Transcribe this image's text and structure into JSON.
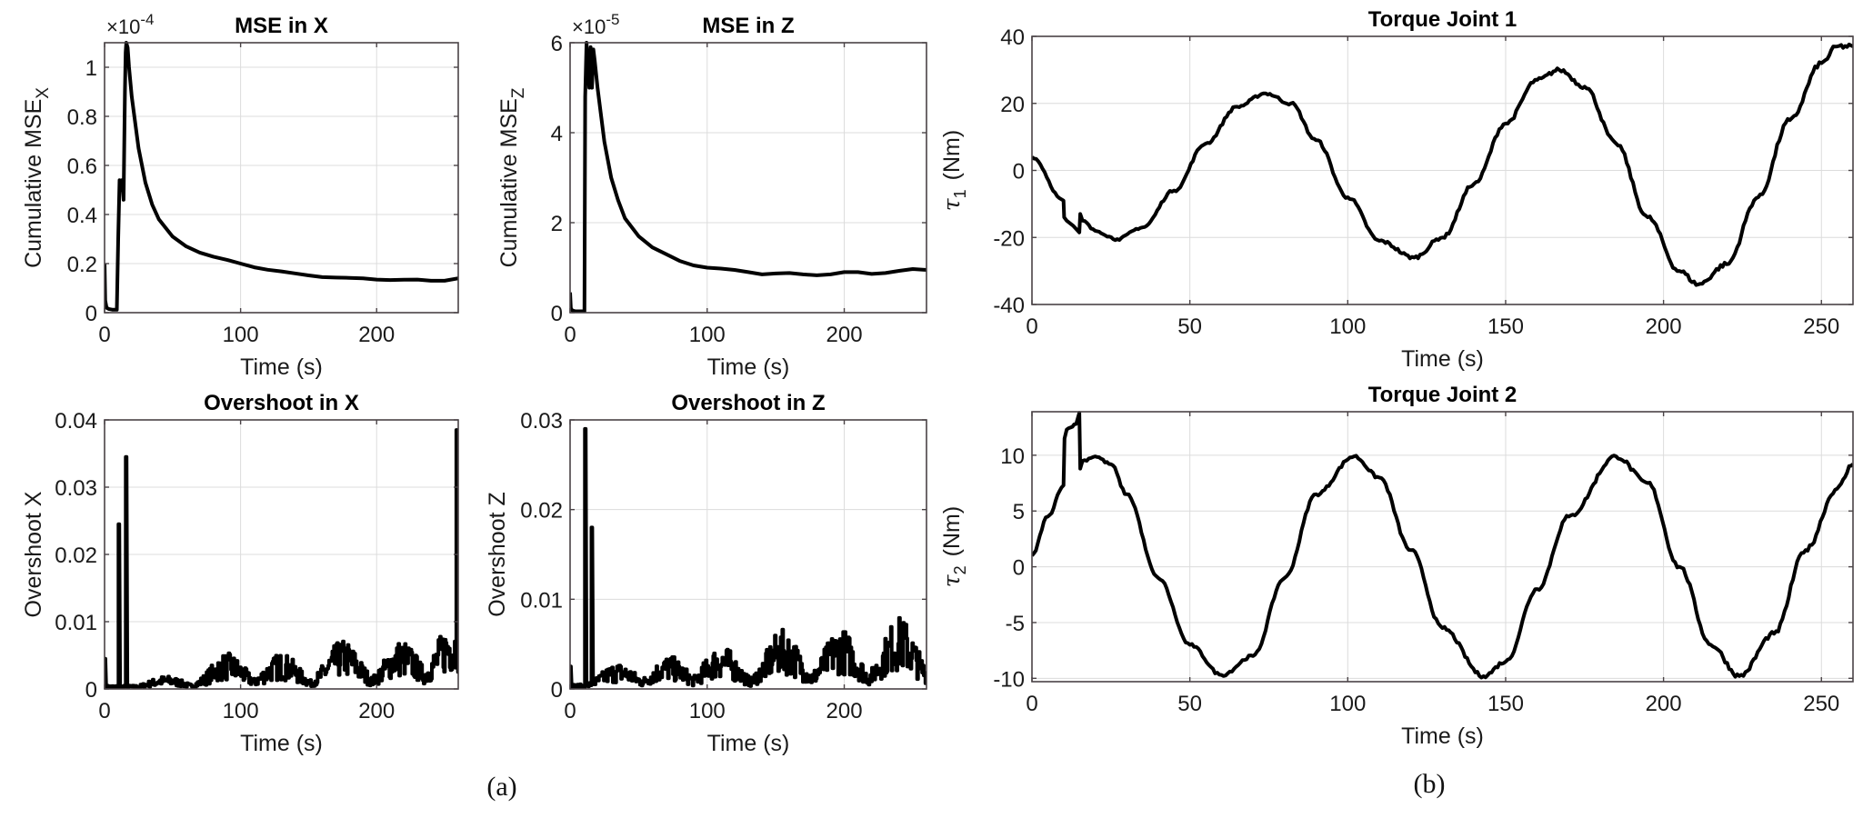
{
  "figure": {
    "captions": {
      "a": "(a)",
      "b": "(b)"
    }
  },
  "chart_data": [
    {
      "id": "mse_x",
      "type": "line",
      "title": "MSE in X",
      "xlabel": "Time (s)",
      "ylabel": "Cumulative MSE",
      "ylabel_subscript": "X",
      "y_exponent_label": "×10",
      "y_exponent": "-4",
      "xlim": [
        0,
        260
      ],
      "ylim": [
        0,
        1.1
      ],
      "xticks": [
        0,
        100,
        200
      ],
      "yticks": [
        0,
        0.2,
        0.4,
        0.6,
        0.8,
        1
      ],
      "ytick_labels": [
        "0",
        "0.2",
        "0.4",
        "0.6",
        "0.8",
        "1"
      ],
      "grid": true,
      "series": [
        {
          "name": "Cumulative MSE X",
          "x": [
            0,
            0.5,
            1.5,
            3,
            6,
            9,
            10,
            11,
            12,
            13,
            14,
            15,
            15.5,
            16,
            17,
            18,
            20,
            25,
            30,
            35,
            40,
            50,
            60,
            70,
            80,
            90,
            100,
            110,
            120,
            130,
            140,
            150,
            160,
            170,
            180,
            190,
            200,
            210,
            220,
            230,
            240,
            250,
            260
          ],
          "y": [
            0.2,
            0.05,
            0.02,
            0.015,
            0.012,
            0.012,
            0.3,
            0.54,
            0.5,
            0.54,
            0.46,
            0.9,
            1.06,
            1.1,
            1.08,
            1.0,
            0.88,
            0.67,
            0.53,
            0.44,
            0.38,
            0.31,
            0.27,
            0.245,
            0.228,
            0.215,
            0.2,
            0.185,
            0.175,
            0.168,
            0.16,
            0.152,
            0.145,
            0.143,
            0.142,
            0.14,
            0.135,
            0.133,
            0.134,
            0.135,
            0.13,
            0.13,
            0.14
          ]
        }
      ]
    },
    {
      "id": "mse_z",
      "type": "line",
      "title": "MSE in Z",
      "xlabel": "Time (s)",
      "ylabel": "Cumulative MSE",
      "ylabel_subscript": "Z",
      "y_exponent_label": "×10",
      "y_exponent": "-5",
      "xlim": [
        0,
        260
      ],
      "ylim": [
        0,
        6
      ],
      "xticks": [
        0,
        100,
        200
      ],
      "yticks": [
        0,
        2,
        4,
        6
      ],
      "ytick_labels": [
        "0",
        "2",
        "4",
        "6"
      ],
      "grid": true,
      "series": [
        {
          "name": "Cumulative MSE Z",
          "x": [
            0,
            0.5,
            1.5,
            4,
            8,
            10.5,
            11,
            12,
            13,
            14,
            15,
            16,
            17,
            18,
            20,
            25,
            30,
            35,
            40,
            50,
            60,
            70,
            80,
            90,
            100,
            110,
            120,
            130,
            140,
            150,
            160,
            170,
            180,
            190,
            200,
            210,
            220,
            230,
            240,
            250,
            260
          ],
          "y": [
            0.45,
            0.1,
            0.05,
            0.03,
            0.03,
            0.03,
            4.8,
            6.0,
            5.5,
            5.0,
            5.9,
            5.0,
            5.85,
            5.6,
            5.0,
            3.8,
            3.0,
            2.5,
            2.1,
            1.7,
            1.45,
            1.3,
            1.15,
            1.05,
            1.0,
            0.98,
            0.95,
            0.9,
            0.85,
            0.87,
            0.88,
            0.85,
            0.83,
            0.85,
            0.9,
            0.9,
            0.86,
            0.88,
            0.93,
            0.97,
            0.95
          ]
        }
      ]
    },
    {
      "id": "overshoot_x",
      "type": "line",
      "title": "Overshoot in X",
      "xlabel": "Time (s)",
      "ylabel": "Overshoot X",
      "xlim": [
        0,
        260
      ],
      "ylim": [
        0,
        0.04
      ],
      "xticks": [
        0,
        100,
        200
      ],
      "yticks": [
        0,
        0.01,
        0.02,
        0.03,
        0.04
      ],
      "ytick_labels": [
        "0",
        "0.01",
        "0.02",
        "0.03",
        "0.04"
      ],
      "grid": true,
      "envelope": {
        "description": "noisy oscillating overshoot with early spikes",
        "spikes": [
          {
            "t": 0.5,
            "value": 0.0045
          },
          {
            "t": 10.5,
            "value": 0.0245
          },
          {
            "t": 16,
            "value": 0.0345
          },
          {
            "t": 259,
            "value": 0.0385
          }
        ],
        "bumps": [
          {
            "t": 45,
            "peak": 0.002
          },
          {
            "t": 90,
            "peak": 0.0055
          },
          {
            "t": 130,
            "peak": 0.0055
          },
          {
            "t": 175,
            "peak": 0.0075
          },
          {
            "t": 218,
            "peak": 0.0075
          },
          {
            "t": 255,
            "peak": 0.0102
          }
        ]
      }
    },
    {
      "id": "overshoot_z",
      "type": "line",
      "title": "Overshoot in Z",
      "xlabel": "Time (s)",
      "ylabel": "Overshoot Z",
      "xlim": [
        0,
        260
      ],
      "ylim": [
        0,
        0.03
      ],
      "xticks": [
        0,
        100,
        200
      ],
      "yticks": [
        0,
        0.01,
        0.02,
        0.03
      ],
      "ytick_labels": [
        "0",
        "0.01",
        "0.02",
        "0.03"
      ],
      "grid": true,
      "envelope": {
        "description": "noisy oscillating overshoot with early spikes",
        "spikes": [
          {
            "t": 0.5,
            "value": 0.0025
          },
          {
            "t": 11,
            "value": 0.029
          },
          {
            "t": 16,
            "value": 0.018
          }
        ],
        "bumps": [
          {
            "t": 35,
            "peak": 0.003
          },
          {
            "t": 72,
            "peak": 0.0038
          },
          {
            "t": 110,
            "peak": 0.005
          },
          {
            "t": 155,
            "peak": 0.0068
          },
          {
            "t": 197,
            "peak": 0.007
          },
          {
            "t": 240,
            "peak": 0.0083
          }
        ]
      }
    },
    {
      "id": "torque_1",
      "type": "line",
      "title": "Torque Joint 1",
      "xlabel": "Time (s)",
      "ylabel": "τ",
      "ylabel_subscript": "1",
      "ylabel_unit": "(Nm)",
      "xlim": [
        0,
        260
      ],
      "ylim": [
        -40,
        40
      ],
      "xticks": [
        0,
        50,
        100,
        150,
        200,
        250
      ],
      "yticks": [
        -40,
        -20,
        0,
        20,
        40
      ],
      "ytick_labels": [
        "-40",
        "-20",
        "0",
        "20",
        "40"
      ],
      "grid": true,
      "series": [
        {
          "name": "τ1",
          "x": [
            0,
            10,
            10.2,
            11,
            13,
            15,
            15.3,
            16,
            20,
            27,
            35,
            45,
            55,
            65,
            74,
            82,
            90,
            100,
            110,
            121,
            130,
            140,
            150,
            160,
            167,
            175,
            185,
            195,
            205,
            211,
            220,
            230,
            240,
            250,
            255,
            260
          ],
          "y": [
            4,
            -9,
            -14,
            -15,
            -16.5,
            -18.5,
            -13,
            -15,
            -18,
            -20.5,
            -17,
            -6,
            8,
            19,
            23,
            20,
            9,
            -8,
            -21,
            -26,
            -20,
            -4,
            14,
            27,
            30,
            25,
            8,
            -14,
            -30,
            -34,
            -28,
            -8,
            15,
            32,
            37,
            37
          ]
        }
      ]
    },
    {
      "id": "torque_2",
      "type": "line",
      "title": "Torque Joint 2",
      "xlabel": "Time (s)",
      "ylabel": "τ",
      "ylabel_subscript": "2",
      "ylabel_unit": "(Nm)",
      "xlim": [
        0,
        260
      ],
      "ylim": [
        -10.3,
        13.9
      ],
      "xticks": [
        0,
        50,
        100,
        150,
        200,
        250
      ],
      "yticks": [
        -10,
        -5,
        0,
        5,
        10
      ],
      "ytick_labels": [
        "-10",
        "-5",
        "0",
        "5",
        "10"
      ],
      "grid": true,
      "series": [
        {
          "name": "τ2",
          "x": [
            0,
            5,
            10,
            10.3,
            11,
            14,
            15,
            15.3,
            16,
            20,
            25,
            30,
            40,
            50,
            60,
            70,
            80,
            90,
            102,
            110,
            120,
            130,
            143,
            150,
            160,
            170,
            185,
            195,
            205,
            215,
            224,
            235,
            245,
            255,
            260
          ],
          "y": [
            1,
            4.5,
            7.3,
            11.5,
            12.3,
            12.8,
            13.8,
            8.8,
            9.5,
            9.9,
            9.2,
            6.5,
            -1,
            -7,
            -9.7,
            -8,
            -1,
            6.5,
            9.9,
            8,
            1.5,
            -5.5,
            -9.8,
            -8.5,
            -2,
            4.5,
            9.9,
            7.5,
            0,
            -7,
            -9.8,
            -6,
            1.5,
            7,
            9.2
          ]
        }
      ]
    }
  ]
}
